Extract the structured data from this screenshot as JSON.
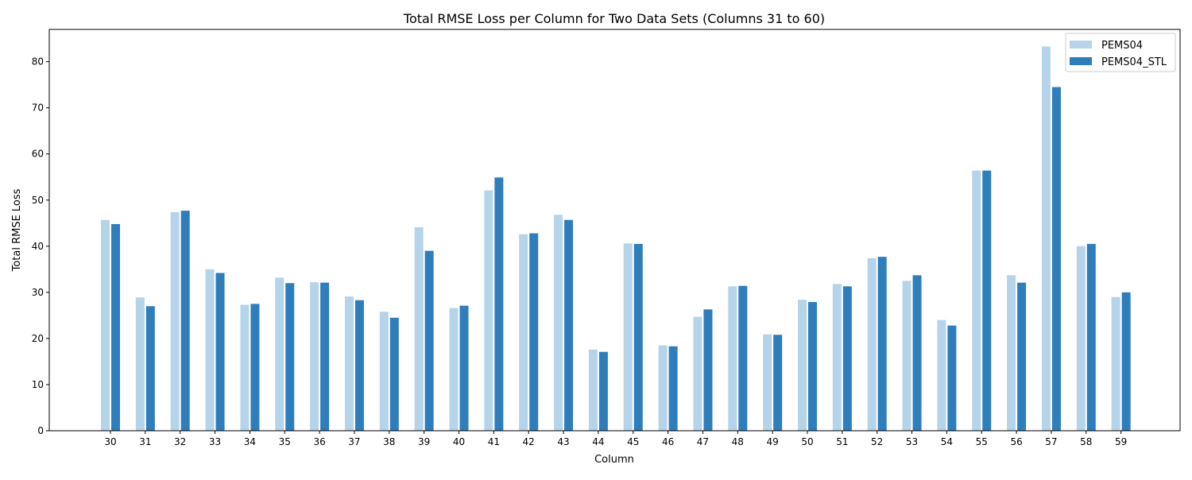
{
  "chart_data": {
    "type": "bar",
    "title": "Total RMSE Loss per Column for Two Data Sets (Columns 31 to 60)",
    "xlabel": "Column",
    "ylabel": "Total RMSE Loss",
    "ylim": [
      0,
      87
    ],
    "yticks": [
      0,
      10,
      20,
      30,
      40,
      50,
      60,
      70,
      80
    ],
    "grid": false,
    "legend_position": "top-right",
    "categories": [
      "30",
      "31",
      "32",
      "33",
      "34",
      "35",
      "36",
      "37",
      "38",
      "39",
      "40",
      "41",
      "42",
      "43",
      "44",
      "45",
      "46",
      "47",
      "48",
      "49",
      "50",
      "51",
      "52",
      "53",
      "54",
      "55",
      "56",
      "57",
      "58",
      "59"
    ],
    "series": [
      {
        "name": "PEMS04",
        "color": "#b6d4e9",
        "values": [
          45.7,
          28.9,
          47.4,
          35.0,
          27.3,
          33.2,
          32.2,
          29.1,
          25.8,
          44.1,
          26.6,
          52.1,
          42.6,
          46.8,
          17.6,
          40.6,
          18.5,
          24.7,
          31.3,
          20.9,
          28.4,
          31.8,
          37.4,
          32.5,
          24.0,
          56.4,
          33.7,
          83.3,
          40.0,
          29.0
        ]
      },
      {
        "name": "PEMS04_STL",
        "color": "#2e7ebc",
        "values": [
          44.8,
          27.0,
          47.7,
          34.2,
          27.5,
          32.0,
          32.1,
          28.3,
          24.5,
          39.0,
          27.1,
          54.9,
          42.8,
          45.7,
          17.1,
          40.5,
          18.3,
          26.3,
          31.4,
          20.8,
          27.9,
          31.3,
          37.7,
          33.7,
          22.8,
          56.4,
          32.1,
          74.5,
          40.5,
          30.0
        ]
      }
    ]
  }
}
